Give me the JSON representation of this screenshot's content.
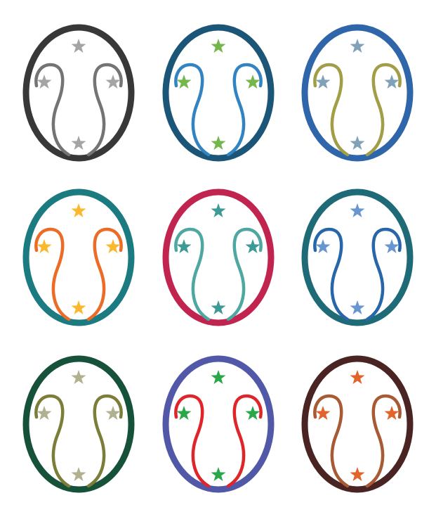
{
  "emblems": [
    {
      "ring": "#383838",
      "swirl": "#747474",
      "star": "#a4a4a6"
    },
    {
      "ring": "#1b5577",
      "swirl": "#3283c2",
      "star": "#73b64b"
    },
    {
      "ring": "#2f65a9",
      "swirl": "#a19e47",
      "star": "#7fa2b8"
    },
    {
      "ring": "#1c7a81",
      "swirl": "#ec6b27",
      "star": "#fbb82e"
    },
    {
      "ring": "#c0244f",
      "swirl": "#4ea8a1",
      "star": "#3e9a94"
    },
    {
      "ring": "#1e6a77",
      "swirl": "#2766a8",
      "star": "#6996d0"
    },
    {
      "ring": "#16513a",
      "swirl": "#7d7d3a",
      "star": "#b1b18f"
    },
    {
      "ring": "#5158a8",
      "swirl": "#e0252a",
      "star": "#2aa748"
    },
    {
      "ring": "#4a2422",
      "swirl": "#a85a34",
      "star": "#e2642a"
    }
  ]
}
